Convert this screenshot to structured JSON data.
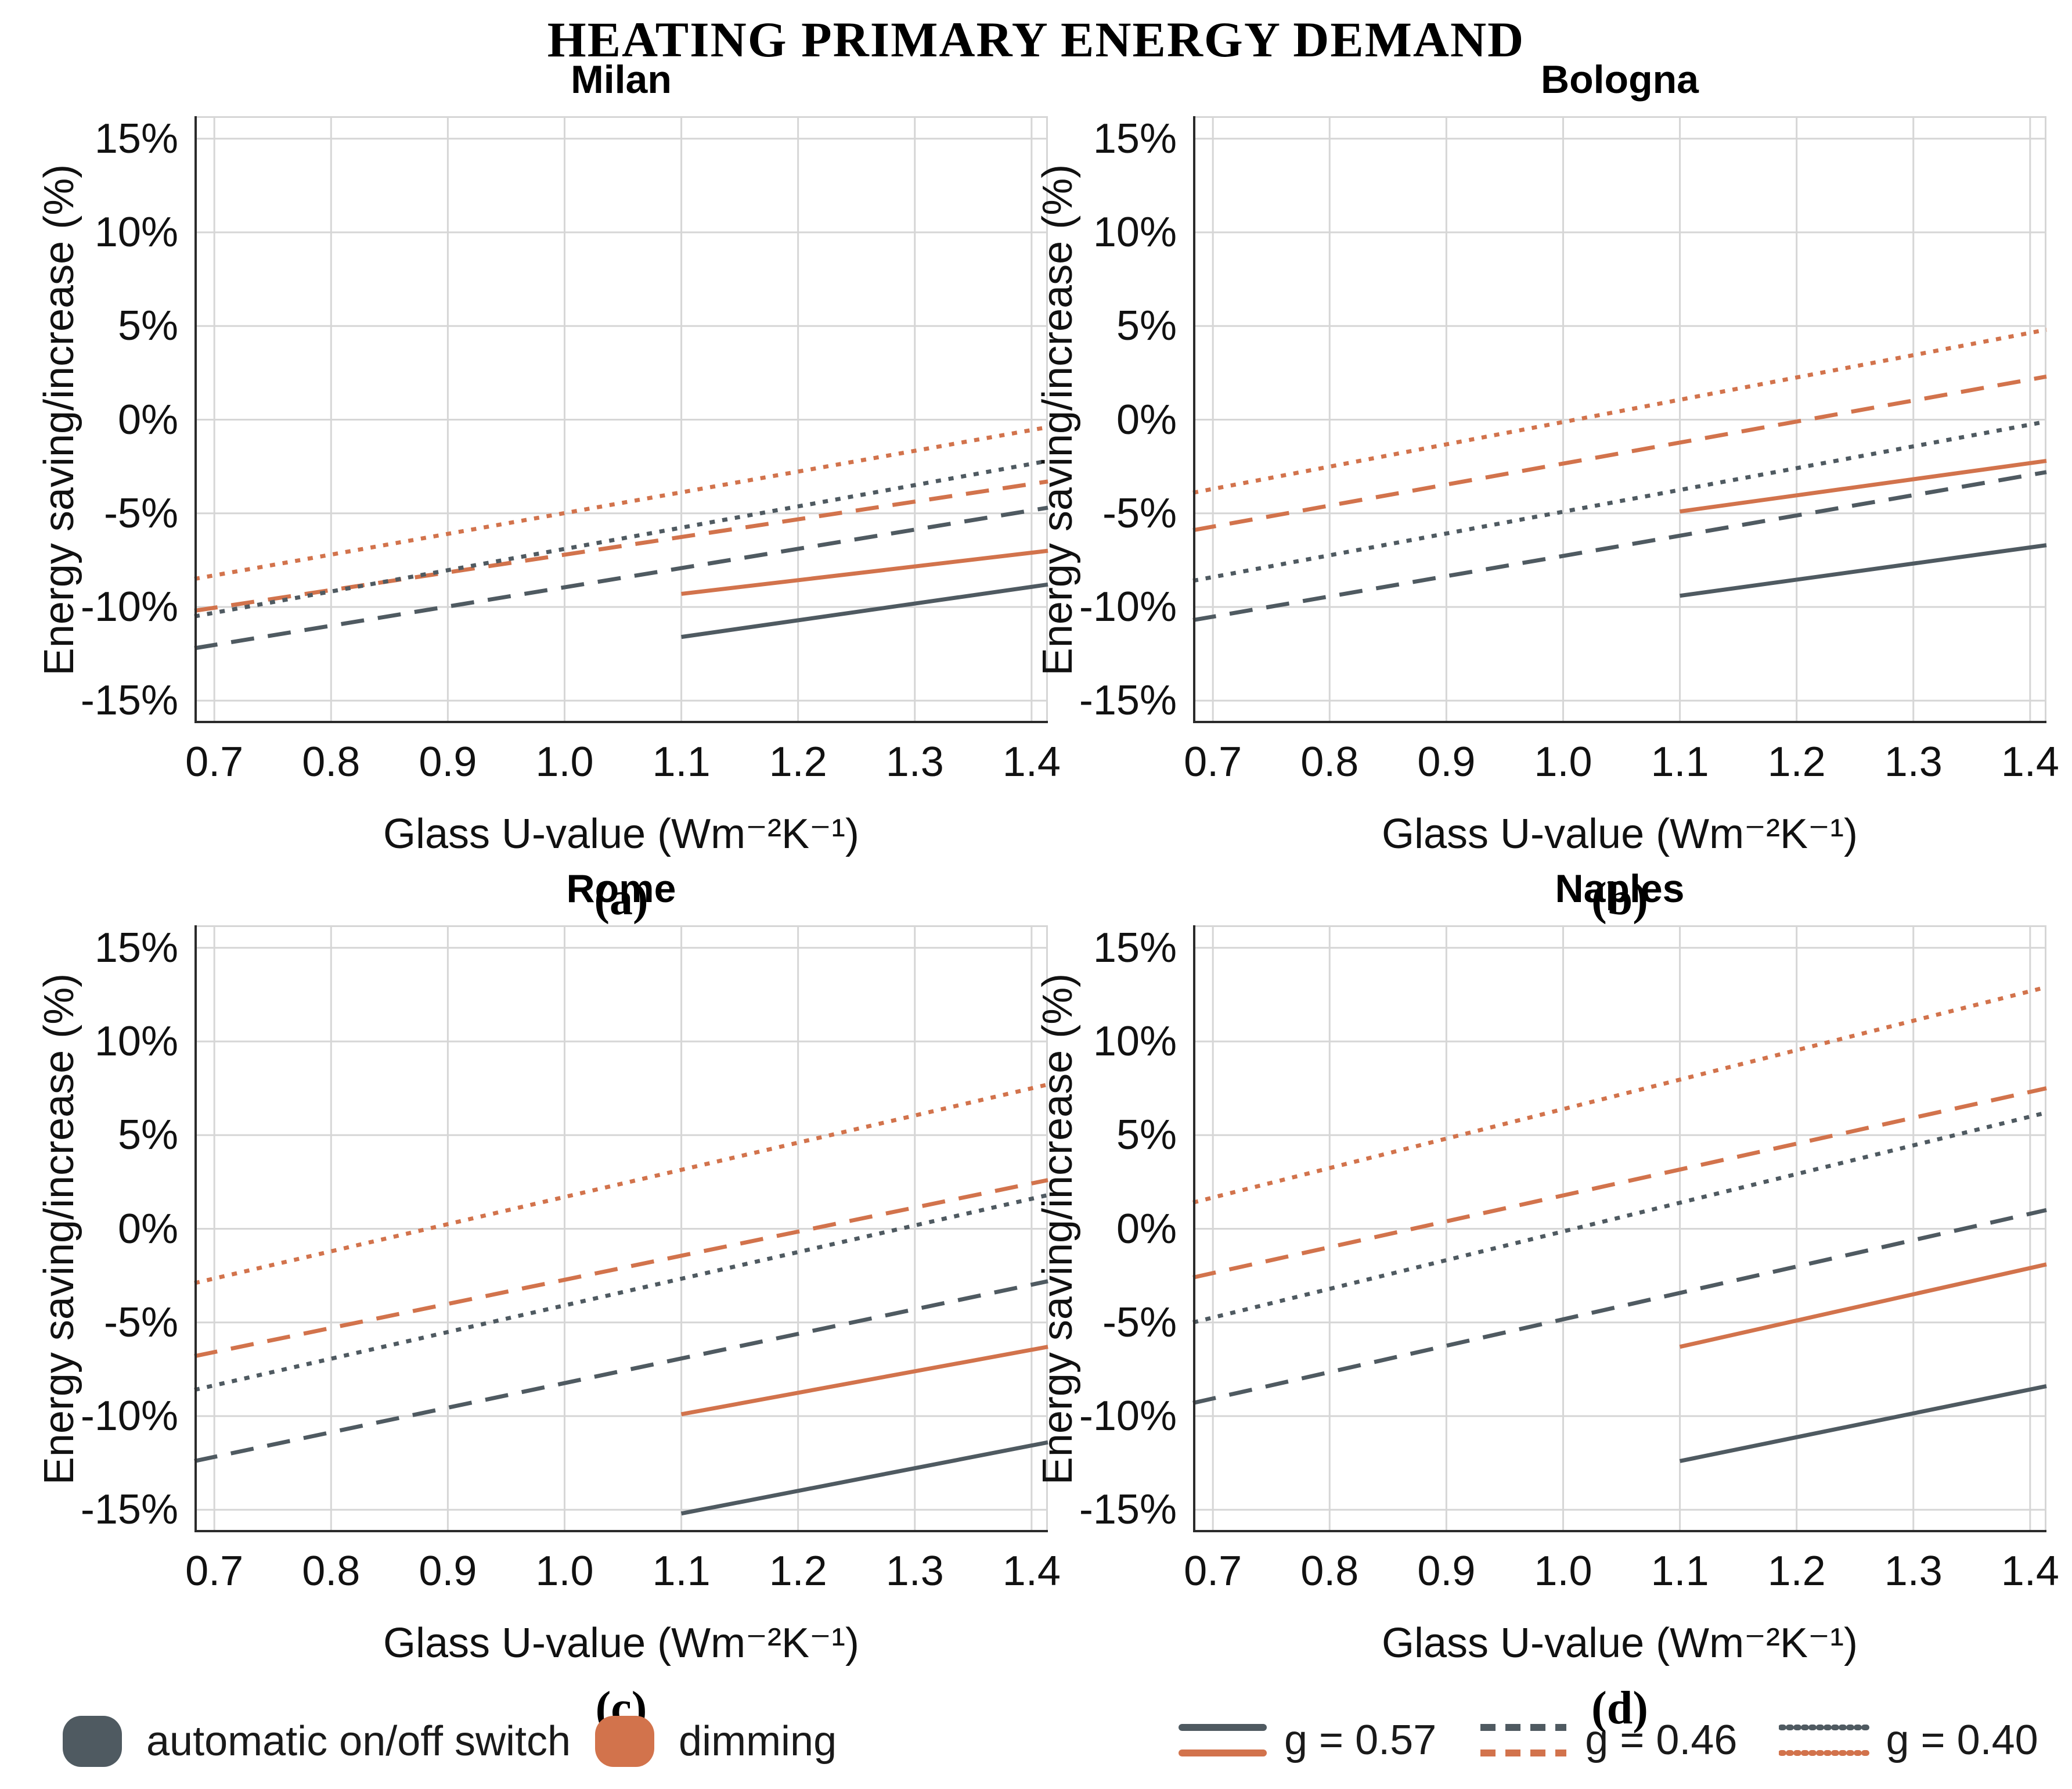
{
  "header": {
    "title": "HEATING PRIMARY ENERGY DEMAND"
  },
  "colors": {
    "onoff": "#4f5a61",
    "dimming": "#d2734c",
    "grid": "#d6d6d6",
    "axis": "#2b2b2b"
  },
  "legend": {
    "strategies": [
      {
        "id": "onoff",
        "label": "automatic on/off switch"
      },
      {
        "id": "dimming",
        "label": "dimming"
      }
    ],
    "g_values": [
      {
        "style": "solid",
        "label": "g = 0.57"
      },
      {
        "style": "dashed",
        "label": "g = 0.46"
      },
      {
        "style": "dotted",
        "label": "g = 0.40"
      }
    ],
    "position": "bottom"
  },
  "chart_data": [
    {
      "type": "line",
      "title": "Milan",
      "caption": "(a)",
      "xlabel": "Glass U-value (Wm⁻²K⁻¹)",
      "ylabel": "Energy saving/increase (%)",
      "xlim": [
        0.683,
        1.414
      ],
      "ylim": [
        -16.2,
        16.2
      ],
      "grid": true,
      "xticks": [
        0.7,
        0.8,
        0.9,
        1.0,
        1.1,
        1.2,
        1.3,
        1.4
      ],
      "xtick_labels": [
        "0.7",
        "0.8",
        "0.9",
        "1.0",
        "1.1",
        "1.2",
        "1.3",
        "1.4"
      ],
      "yticks": [
        15,
        10,
        5,
        0,
        -5,
        -10,
        -15
      ],
      "ytick_labels": [
        "15%",
        "10%",
        "5%",
        "0%",
        "-5%",
        "-10%",
        "-15%"
      ],
      "series": [
        {
          "id": "onoff-g057",
          "name": "automatic on/off switch, g = 0.57",
          "color": "onoff",
          "dash": "solid",
          "x": [
            1.1,
            1.414
          ],
          "y": [
            -11.6,
            -8.8
          ]
        },
        {
          "id": "dimming-g057",
          "name": "dimming, g = 0.57",
          "color": "dimming",
          "dash": "solid",
          "x": [
            1.1,
            1.414
          ],
          "y": [
            -9.3,
            -7.0
          ]
        },
        {
          "id": "onoff-g046",
          "name": "automatic on/off switch, g = 0.46",
          "color": "onoff",
          "dash": "dashed",
          "x": [
            0.683,
            1.414
          ],
          "y": [
            -12.2,
            -4.7
          ]
        },
        {
          "id": "dimming-g046",
          "name": "dimming, g = 0.46",
          "color": "dimming",
          "dash": "dashed",
          "x": [
            0.683,
            1.414
          ],
          "y": [
            -10.2,
            -3.3
          ]
        },
        {
          "id": "onoff-g040",
          "name": "automatic on/off switch, g = 0.40",
          "color": "onoff",
          "dash": "dotted",
          "x": [
            0.683,
            1.414
          ],
          "y": [
            -10.5,
            -2.2
          ]
        },
        {
          "id": "dimming-g040",
          "name": "dimming, g = 0.40",
          "color": "dimming",
          "dash": "dotted",
          "x": [
            0.683,
            1.414
          ],
          "y": [
            -8.5,
            -0.4
          ]
        }
      ]
    },
    {
      "type": "line",
      "title": "Bologna",
      "caption": "(b)",
      "xlabel": "Glass U-value (Wm⁻²K⁻¹)",
      "ylabel": "Energy saving/increase (%)",
      "xlim": [
        0.683,
        1.414
      ],
      "ylim": [
        -16.2,
        16.2
      ],
      "grid": true,
      "xticks": [
        0.7,
        0.8,
        0.9,
        1.0,
        1.1,
        1.2,
        1.3,
        1.4
      ],
      "xtick_labels": [
        "0.7",
        "0.8",
        "0.9",
        "1.0",
        "1.1",
        "1.2",
        "1.3",
        "1.4"
      ],
      "yticks": [
        15,
        10,
        5,
        0,
        -5,
        -10,
        -15
      ],
      "ytick_labels": [
        "15%",
        "10%",
        "5%",
        "0%",
        "-5%",
        "-10%",
        "-15%"
      ],
      "series": [
        {
          "id": "onoff-g057",
          "name": "automatic on/off switch, g = 0.57",
          "color": "onoff",
          "dash": "solid",
          "x": [
            1.1,
            1.414
          ],
          "y": [
            -9.4,
            -6.7
          ]
        },
        {
          "id": "dimming-g057",
          "name": "dimming, g = 0.57",
          "color": "dimming",
          "dash": "solid",
          "x": [
            1.1,
            1.414
          ],
          "y": [
            -4.9,
            -2.2
          ]
        },
        {
          "id": "onoff-g046",
          "name": "automatic on/off switch, g = 0.46",
          "color": "onoff",
          "dash": "dashed",
          "x": [
            0.683,
            1.414
          ],
          "y": [
            -10.7,
            -2.8
          ]
        },
        {
          "id": "dimming-g046",
          "name": "dimming, g = 0.46",
          "color": "dimming",
          "dash": "dashed",
          "x": [
            0.683,
            1.414
          ],
          "y": [
            -5.9,
            2.3
          ]
        },
        {
          "id": "onoff-g040",
          "name": "automatic on/off switch, g = 0.40",
          "color": "onoff",
          "dash": "dotted",
          "x": [
            0.683,
            1.414
          ],
          "y": [
            -8.6,
            -0.1
          ]
        },
        {
          "id": "dimming-g040",
          "name": "dimming, g = 0.40",
          "color": "dimming",
          "dash": "dotted",
          "x": [
            0.683,
            1.414
          ],
          "y": [
            -3.9,
            4.8
          ]
        }
      ]
    },
    {
      "type": "line",
      "title": "Rome",
      "caption": "(c)",
      "xlabel": "Glass U-value (Wm⁻²K⁻¹)",
      "ylabel": "Energy saving/increase (%)",
      "xlim": [
        0.683,
        1.414
      ],
      "ylim": [
        -16.2,
        16.2
      ],
      "grid": true,
      "xticks": [
        0.7,
        0.8,
        0.9,
        1.0,
        1.1,
        1.2,
        1.3,
        1.4
      ],
      "xtick_labels": [
        "0.7",
        "0.8",
        "0.9",
        "1.0",
        "1.1",
        "1.2",
        "1.3",
        "1.4"
      ],
      "yticks": [
        15,
        10,
        5,
        0,
        -5,
        -10,
        -15
      ],
      "ytick_labels": [
        "15%",
        "10%",
        "5%",
        "0%",
        "-5%",
        "-10%",
        "-15%"
      ],
      "series": [
        {
          "id": "onoff-g057",
          "name": "automatic on/off switch, g = 0.57",
          "color": "onoff",
          "dash": "solid",
          "x": [
            1.1,
            1.414
          ],
          "y": [
            -15.2,
            -11.4
          ]
        },
        {
          "id": "dimming-g057",
          "name": "dimming, g = 0.57",
          "color": "dimming",
          "dash": "solid",
          "x": [
            1.1,
            1.414
          ],
          "y": [
            -9.9,
            -6.3
          ]
        },
        {
          "id": "onoff-g046",
          "name": "automatic on/off switch, g = 0.46",
          "color": "onoff",
          "dash": "dashed",
          "x": [
            0.683,
            1.414
          ],
          "y": [
            -12.4,
            -2.8
          ]
        },
        {
          "id": "dimming-g046",
          "name": "dimming, g = 0.46",
          "color": "dimming",
          "dash": "dashed",
          "x": [
            0.683,
            1.414
          ],
          "y": [
            -6.8,
            2.6
          ]
        },
        {
          "id": "onoff-g040",
          "name": "automatic on/off switch, g = 0.40",
          "color": "onoff",
          "dash": "dotted",
          "x": [
            0.683,
            1.414
          ],
          "y": [
            -8.6,
            1.8
          ]
        },
        {
          "id": "dimming-g040",
          "name": "dimming, g = 0.40",
          "color": "dimming",
          "dash": "dotted",
          "x": [
            0.683,
            1.414
          ],
          "y": [
            -2.9,
            7.7
          ]
        }
      ]
    },
    {
      "type": "line",
      "title": "Naples",
      "caption": "(d)",
      "xlabel": "Glass U-value (Wm⁻²K⁻¹)",
      "ylabel": "Energy saving/increase (%)",
      "xlim": [
        0.683,
        1.414
      ],
      "ylim": [
        -16.2,
        16.2
      ],
      "grid": true,
      "xticks": [
        0.7,
        0.8,
        0.9,
        1.0,
        1.1,
        1.2,
        1.3,
        1.4
      ],
      "xtick_labels": [
        "0.7",
        "0.8",
        "0.9",
        "1.0",
        "1.1",
        "1.2",
        "1.3",
        "1.4"
      ],
      "yticks": [
        15,
        10,
        5,
        0,
        -5,
        -10,
        -15
      ],
      "ytick_labels": [
        "15%",
        "10%",
        "5%",
        "0%",
        "-5%",
        "-10%",
        "-15%"
      ],
      "series": [
        {
          "id": "onoff-g057",
          "name": "automatic on/off switch, g = 0.57",
          "color": "onoff",
          "dash": "solid",
          "x": [
            1.1,
            1.414
          ],
          "y": [
            -12.4,
            -8.4
          ]
        },
        {
          "id": "dimming-g057",
          "name": "dimming, g = 0.57",
          "color": "dimming",
          "dash": "solid",
          "x": [
            1.1,
            1.414
          ],
          "y": [
            -6.3,
            -1.9
          ]
        },
        {
          "id": "onoff-g046",
          "name": "automatic on/off switch, g = 0.46",
          "color": "onoff",
          "dash": "dashed",
          "x": [
            0.683,
            1.414
          ],
          "y": [
            -9.3,
            1.0
          ]
        },
        {
          "id": "dimming-g046",
          "name": "dimming, g = 0.46",
          "color": "dimming",
          "dash": "dashed",
          "x": [
            0.683,
            1.414
          ],
          "y": [
            -2.6,
            7.5
          ]
        },
        {
          "id": "onoff-g040",
          "name": "automatic on/off switch, g = 0.40",
          "color": "onoff",
          "dash": "dotted",
          "x": [
            0.683,
            1.414
          ],
          "y": [
            -5.0,
            6.2
          ]
        },
        {
          "id": "dimming-g040",
          "name": "dimming, g = 0.40",
          "color": "dimming",
          "dash": "dotted",
          "x": [
            0.683,
            1.414
          ],
          "y": [
            1.4,
            12.9
          ]
        }
      ]
    }
  ]
}
